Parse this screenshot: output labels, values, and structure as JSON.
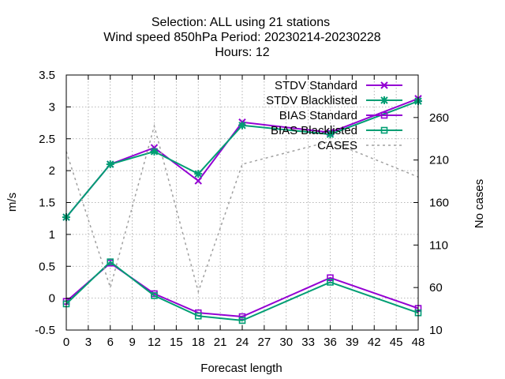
{
  "chart_data": {
    "type": "line",
    "title_lines": [
      "Selection: ALL using     21 stations",
      "Wind speed 850hPa   Period: 20230214-20230228",
      "Hours:  12"
    ],
    "xlabel": "Forecast length",
    "ylabel": "m/s",
    "y2label": "No cases",
    "xlim": [
      0,
      48
    ],
    "ylim": [
      -0.5,
      3.5
    ],
    "y2lim": [
      10,
      310
    ],
    "xticks": [
      "0",
      "3",
      "6",
      "9",
      "12",
      "15",
      "18",
      "21",
      "24",
      "27",
      "30",
      "33",
      "36",
      "39",
      "42",
      "45",
      "48"
    ],
    "yticks": [
      "-0.5",
      "0",
      "0.5",
      "1",
      "1.5",
      "2",
      "2.5",
      "3",
      "3.5"
    ],
    "y2ticks": [
      "10",
      "60",
      "110",
      "160",
      "210",
      "260"
    ],
    "grid": true,
    "legend_position": "top-right",
    "colors": {
      "standard": "#9400d3",
      "blacklisted": "#009e73",
      "cases": "#a0a0a0"
    },
    "series": [
      {
        "name": "STDV Standard",
        "axis": "y",
        "marker": "x",
        "x": [
          0,
          6,
          12,
          18,
          24,
          36,
          48
        ],
        "y": [
          1.27,
          2.1,
          2.36,
          1.84,
          2.76,
          2.6,
          3.13
        ]
      },
      {
        "name": "STDV Blacklisted",
        "axis": "y",
        "marker": "star",
        "x": [
          0,
          6,
          12,
          18,
          24,
          36,
          48
        ],
        "y": [
          1.27,
          2.1,
          2.3,
          1.95,
          2.71,
          2.57,
          3.09
        ]
      },
      {
        "name": "BIAS Standard",
        "axis": "y",
        "marker": "square",
        "x": [
          0,
          6,
          12,
          18,
          24,
          36,
          48
        ],
        "y": [
          -0.05,
          0.55,
          0.07,
          -0.23,
          -0.29,
          0.32,
          -0.16
        ]
      },
      {
        "name": "BIAS Blacklisted",
        "axis": "y",
        "marker": "square",
        "x": [
          0,
          6,
          12,
          18,
          24,
          36,
          48
        ],
        "y": [
          -0.09,
          0.57,
          0.04,
          -0.28,
          -0.35,
          0.25,
          -0.23
        ]
      },
      {
        "name": "CASES",
        "axis": "y2",
        "marker": "none",
        "x": [
          0,
          6,
          12,
          18,
          24,
          36,
          48
        ],
        "y": [
          220,
          60,
          250,
          55,
          205,
          232,
          190
        ]
      }
    ]
  }
}
